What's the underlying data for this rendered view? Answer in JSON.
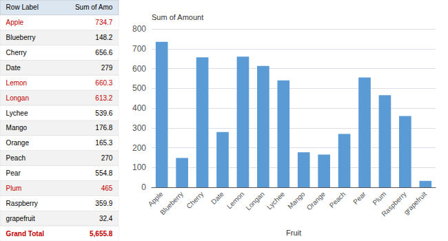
{
  "chart_data": [
    {
      "type": "table",
      "xlabel": "Row Label",
      "ylabel": "Sum of Amo",
      "categories": [
        "Apple",
        "Blueberry",
        "Cherry",
        "Date",
        "Lemon",
        "Longan",
        "Lychee",
        "Mango",
        "Orange",
        "Peach",
        "Pear",
        "Plum",
        "Raspberry",
        "grapefruit",
        "Grand Total"
      ],
      "values": [
        734.7,
        148.2,
        656.6,
        279,
        660.3,
        613.2,
        539.6,
        176.8,
        165.3,
        270,
        554.8,
        465,
        359.9,
        32.4,
        5655.8
      ],
      "value_labels": [
        "734.7",
        "148.2",
        "656.6",
        "279",
        "660.3",
        "613.2",
        "539.6",
        "176.8",
        "165.3",
        "270",
        "554.8",
        "465",
        "359.9",
        "32.4",
        "5,655.8"
      ],
      "colors": [
        "#C00000",
        "#000000",
        "#000000",
        "#000000",
        "#C00000",
        "#C00000",
        "#000000",
        "#000000",
        "#000000",
        "#000000",
        "#000000",
        "#C00000",
        "#000000",
        "#000000",
        "#C00000"
      ]
    },
    {
      "type": "bar",
      "xlabel": "Fruit",
      "ylabel": "Sum of Amount",
      "categories": [
        "Apple",
        "Blueberry",
        "Cherry",
        "Date",
        "Lemon",
        "Longan",
        "Lychee",
        "Mango",
        "Orange",
        "Peach",
        "Pear",
        "Plum",
        "Raspberry",
        "grapefruit"
      ],
      "values": [
        734.7,
        148.2,
        656.6,
        279,
        660.3,
        613.2,
        539.6,
        176.8,
        165.3,
        270,
        554.8,
        465,
        359.9,
        32.4
      ],
      "color": "#5B9BD5",
      "ylim": [
        0,
        800
      ],
      "yticks": [
        0,
        100,
        200,
        300,
        400,
        500,
        600,
        700,
        800
      ],
      "grid": true
    }
  ]
}
